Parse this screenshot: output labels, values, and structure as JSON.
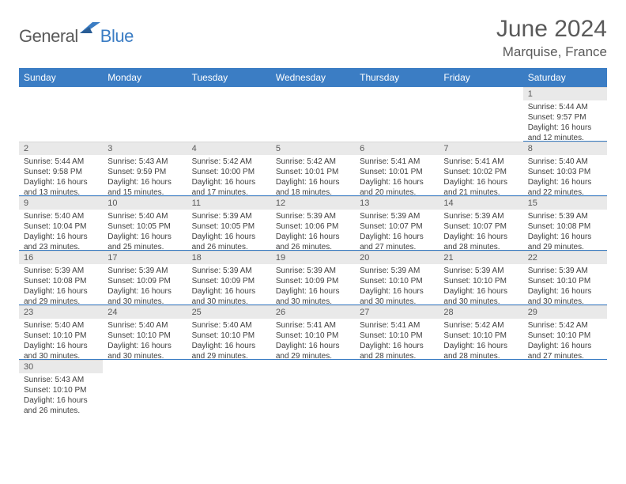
{
  "logo": {
    "text1": "General",
    "text2": "Blue"
  },
  "header": {
    "month": "June 2024",
    "location": "Marquise, France"
  },
  "colors": {
    "header_bg": "#3b7dc4",
    "daynum_bg": "#e9e9e9",
    "accent": "#3b7dc4",
    "text_gray": "#5a5a5a",
    "body_text": "#404040"
  },
  "dayNames": [
    "Sunday",
    "Monday",
    "Tuesday",
    "Wednesday",
    "Thursday",
    "Friday",
    "Saturday"
  ],
  "weeks": [
    [
      null,
      null,
      null,
      null,
      null,
      null,
      {
        "d": "1",
        "rise": "Sunrise: 5:44 AM",
        "set": "Sunset: 9:57 PM",
        "dl1": "Daylight: 16 hours",
        "dl2": "and 12 minutes."
      }
    ],
    [
      {
        "d": "2",
        "rise": "Sunrise: 5:44 AM",
        "set": "Sunset: 9:58 PM",
        "dl1": "Daylight: 16 hours",
        "dl2": "and 13 minutes."
      },
      {
        "d": "3",
        "rise": "Sunrise: 5:43 AM",
        "set": "Sunset: 9:59 PM",
        "dl1": "Daylight: 16 hours",
        "dl2": "and 15 minutes."
      },
      {
        "d": "4",
        "rise": "Sunrise: 5:42 AM",
        "set": "Sunset: 10:00 PM",
        "dl1": "Daylight: 16 hours",
        "dl2": "and 17 minutes."
      },
      {
        "d": "5",
        "rise": "Sunrise: 5:42 AM",
        "set": "Sunset: 10:01 PM",
        "dl1": "Daylight: 16 hours",
        "dl2": "and 18 minutes."
      },
      {
        "d": "6",
        "rise": "Sunrise: 5:41 AM",
        "set": "Sunset: 10:01 PM",
        "dl1": "Daylight: 16 hours",
        "dl2": "and 20 minutes."
      },
      {
        "d": "7",
        "rise": "Sunrise: 5:41 AM",
        "set": "Sunset: 10:02 PM",
        "dl1": "Daylight: 16 hours",
        "dl2": "and 21 minutes."
      },
      {
        "d": "8",
        "rise": "Sunrise: 5:40 AM",
        "set": "Sunset: 10:03 PM",
        "dl1": "Daylight: 16 hours",
        "dl2": "and 22 minutes."
      }
    ],
    [
      {
        "d": "9",
        "rise": "Sunrise: 5:40 AM",
        "set": "Sunset: 10:04 PM",
        "dl1": "Daylight: 16 hours",
        "dl2": "and 23 minutes."
      },
      {
        "d": "10",
        "rise": "Sunrise: 5:40 AM",
        "set": "Sunset: 10:05 PM",
        "dl1": "Daylight: 16 hours",
        "dl2": "and 25 minutes."
      },
      {
        "d": "11",
        "rise": "Sunrise: 5:39 AM",
        "set": "Sunset: 10:05 PM",
        "dl1": "Daylight: 16 hours",
        "dl2": "and 26 minutes."
      },
      {
        "d": "12",
        "rise": "Sunrise: 5:39 AM",
        "set": "Sunset: 10:06 PM",
        "dl1": "Daylight: 16 hours",
        "dl2": "and 26 minutes."
      },
      {
        "d": "13",
        "rise": "Sunrise: 5:39 AM",
        "set": "Sunset: 10:07 PM",
        "dl1": "Daylight: 16 hours",
        "dl2": "and 27 minutes."
      },
      {
        "d": "14",
        "rise": "Sunrise: 5:39 AM",
        "set": "Sunset: 10:07 PM",
        "dl1": "Daylight: 16 hours",
        "dl2": "and 28 minutes."
      },
      {
        "d": "15",
        "rise": "Sunrise: 5:39 AM",
        "set": "Sunset: 10:08 PM",
        "dl1": "Daylight: 16 hours",
        "dl2": "and 29 minutes."
      }
    ],
    [
      {
        "d": "16",
        "rise": "Sunrise: 5:39 AM",
        "set": "Sunset: 10:08 PM",
        "dl1": "Daylight: 16 hours",
        "dl2": "and 29 minutes."
      },
      {
        "d": "17",
        "rise": "Sunrise: 5:39 AM",
        "set": "Sunset: 10:09 PM",
        "dl1": "Daylight: 16 hours",
        "dl2": "and 30 minutes."
      },
      {
        "d": "18",
        "rise": "Sunrise: 5:39 AM",
        "set": "Sunset: 10:09 PM",
        "dl1": "Daylight: 16 hours",
        "dl2": "and 30 minutes."
      },
      {
        "d": "19",
        "rise": "Sunrise: 5:39 AM",
        "set": "Sunset: 10:09 PM",
        "dl1": "Daylight: 16 hours",
        "dl2": "and 30 minutes."
      },
      {
        "d": "20",
        "rise": "Sunrise: 5:39 AM",
        "set": "Sunset: 10:10 PM",
        "dl1": "Daylight: 16 hours",
        "dl2": "and 30 minutes."
      },
      {
        "d": "21",
        "rise": "Sunrise: 5:39 AM",
        "set": "Sunset: 10:10 PM",
        "dl1": "Daylight: 16 hours",
        "dl2": "and 30 minutes."
      },
      {
        "d": "22",
        "rise": "Sunrise: 5:39 AM",
        "set": "Sunset: 10:10 PM",
        "dl1": "Daylight: 16 hours",
        "dl2": "and 30 minutes."
      }
    ],
    [
      {
        "d": "23",
        "rise": "Sunrise: 5:40 AM",
        "set": "Sunset: 10:10 PM",
        "dl1": "Daylight: 16 hours",
        "dl2": "and 30 minutes."
      },
      {
        "d": "24",
        "rise": "Sunrise: 5:40 AM",
        "set": "Sunset: 10:10 PM",
        "dl1": "Daylight: 16 hours",
        "dl2": "and 30 minutes."
      },
      {
        "d": "25",
        "rise": "Sunrise: 5:40 AM",
        "set": "Sunset: 10:10 PM",
        "dl1": "Daylight: 16 hours",
        "dl2": "and 29 minutes."
      },
      {
        "d": "26",
        "rise": "Sunrise: 5:41 AM",
        "set": "Sunset: 10:10 PM",
        "dl1": "Daylight: 16 hours",
        "dl2": "and 29 minutes."
      },
      {
        "d": "27",
        "rise": "Sunrise: 5:41 AM",
        "set": "Sunset: 10:10 PM",
        "dl1": "Daylight: 16 hours",
        "dl2": "and 28 minutes."
      },
      {
        "d": "28",
        "rise": "Sunrise: 5:42 AM",
        "set": "Sunset: 10:10 PM",
        "dl1": "Daylight: 16 hours",
        "dl2": "and 28 minutes."
      },
      {
        "d": "29",
        "rise": "Sunrise: 5:42 AM",
        "set": "Sunset: 10:10 PM",
        "dl1": "Daylight: 16 hours",
        "dl2": "and 27 minutes."
      }
    ],
    [
      {
        "d": "30",
        "rise": "Sunrise: 5:43 AM",
        "set": "Sunset: 10:10 PM",
        "dl1": "Daylight: 16 hours",
        "dl2": "and 26 minutes."
      },
      null,
      null,
      null,
      null,
      null,
      null
    ]
  ]
}
